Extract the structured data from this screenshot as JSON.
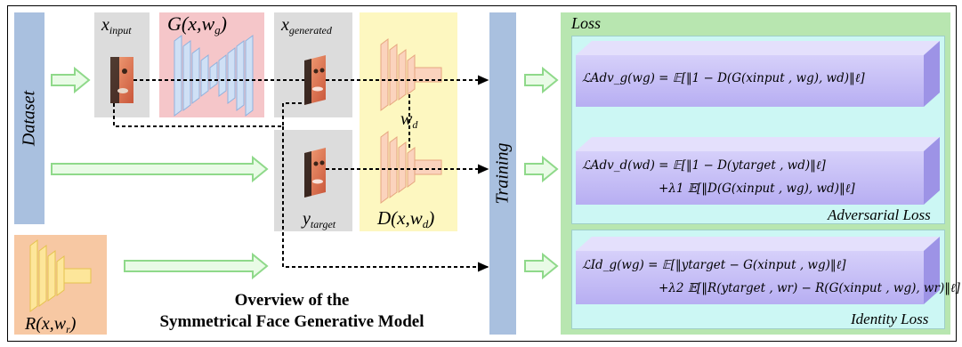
{
  "labels": {
    "dataset": "Dataset",
    "training": "Training",
    "x_input": "x",
    "x_input_sub": "input",
    "generator": "G(x,w",
    "generator_sub": "g",
    "x_generated": "x",
    "x_generated_sub": "generated",
    "w_d": "w",
    "w_d_sub": "d",
    "y_target": "y",
    "y_target_sub": "target",
    "discriminator": "D(x,w",
    "discriminator_sub": "d",
    "recognizer": "R(x,w",
    "recognizer_sub": "r",
    "closing_paren": ")"
  },
  "title": {
    "line1": "Overview of the",
    "line2": "Symmetrical Face Generative Model"
  },
  "loss": {
    "header": "Loss",
    "adversarial_caption": "Adversarial Loss",
    "identity_caption": "Identity Loss",
    "eq_adv_g": "ℒAdv_g(wg)   = 𝔼[‖1 − D(G(xinput , wg), wd)‖ℓ]",
    "eq_adv_d_1": "ℒAdv_d(wd)   = 𝔼[‖1 − D(ytarget , wd)‖ℓ]",
    "eq_adv_d_2": "+λ1 𝔼[‖D(G(xinput , wg), wd)‖ℓ]",
    "eq_id_g_1": "ℒId_g(wg)   = 𝔼[‖ytarget − G(xinput , wg)‖ℓ]",
    "eq_id_g_2": "+λ2 𝔼[‖R(ytarget , wr) − R(G(xinput , wg), wr)‖ℓ]"
  },
  "colors": {
    "dataset_bar": "#a9c0df",
    "training_bar": "#a9c0df",
    "generator_bg": "#f5c6c9",
    "discriminator_bg": "#fdf7c0",
    "gray_panel": "#dcdcdc",
    "recognizer_bg": "#f7c8a3",
    "loss_outer": "#b8e6b0",
    "loss_inner": "#ccf7f4",
    "eq_box": "#c9c2f7",
    "arrow_green": "#8fd98a"
  }
}
